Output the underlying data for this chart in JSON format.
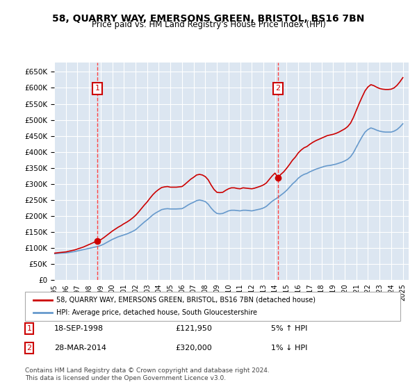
{
  "title": "58, QUARRY WAY, EMERSONS GREEN, BRISTOL, BS16 7BN",
  "subtitle": "Price paid vs. HM Land Registry's House Price Index (HPI)",
  "ylabel_ticks": [
    0,
    50000,
    100000,
    150000,
    200000,
    250000,
    300000,
    350000,
    400000,
    450000,
    500000,
    550000,
    600000,
    650000
  ],
  "ylim": [
    0,
    680000
  ],
  "xlim_start": 1995.0,
  "xlim_end": 2025.5,
  "background_color": "#dce6f1",
  "plot_bg_color": "#dce6f1",
  "grid_color": "#ffffff",
  "sale1_year": 1998.72,
  "sale1_price": 121950,
  "sale2_year": 2014.24,
  "sale2_price": 320000,
  "legend_line1": "58, QUARRY WAY, EMERSONS GREEN, BRISTOL, BS16 7BN (detached house)",
  "legend_line2": "HPI: Average price, detached house, South Gloucestershire",
  "annotation1": "1    18-SEP-1998         £121,950         5% ↑ HPI",
  "annotation2": "2    28-MAR-2014         £320,000         1% ↓ HPI",
  "footer1": "Contains HM Land Registry data © Crown copyright and database right 2024.",
  "footer2": "This data is licensed under the Open Government Licence v3.0.",
  "hpi_years": [
    1995.0,
    1995.25,
    1995.5,
    1995.75,
    1996.0,
    1996.25,
    1996.5,
    1996.75,
    1997.0,
    1997.25,
    1997.5,
    1997.75,
    1998.0,
    1998.25,
    1998.5,
    1998.75,
    1999.0,
    1999.25,
    1999.5,
    1999.75,
    2000.0,
    2000.25,
    2000.5,
    2000.75,
    2001.0,
    2001.25,
    2001.5,
    2001.75,
    2002.0,
    2002.25,
    2002.5,
    2002.75,
    2003.0,
    2003.25,
    2003.5,
    2003.75,
    2004.0,
    2004.25,
    2004.5,
    2004.75,
    2005.0,
    2005.25,
    2005.5,
    2005.75,
    2006.0,
    2006.25,
    2006.5,
    2006.75,
    2007.0,
    2007.25,
    2007.5,
    2007.75,
    2008.0,
    2008.25,
    2008.5,
    2008.75,
    2009.0,
    2009.25,
    2009.5,
    2009.75,
    2010.0,
    2010.25,
    2010.5,
    2010.75,
    2011.0,
    2011.25,
    2011.5,
    2011.75,
    2012.0,
    2012.25,
    2012.5,
    2012.75,
    2013.0,
    2013.25,
    2013.5,
    2013.75,
    2014.0,
    2014.25,
    2014.5,
    2014.75,
    2015.0,
    2015.25,
    2015.5,
    2015.75,
    2016.0,
    2016.25,
    2016.5,
    2016.75,
    2017.0,
    2017.25,
    2017.5,
    2017.75,
    2018.0,
    2018.25,
    2018.5,
    2018.75,
    2019.0,
    2019.25,
    2019.5,
    2019.75,
    2020.0,
    2020.25,
    2020.5,
    2020.75,
    2021.0,
    2021.25,
    2021.5,
    2021.75,
    2022.0,
    2022.25,
    2022.5,
    2022.75,
    2023.0,
    2023.25,
    2023.5,
    2023.75,
    2024.0,
    2024.25,
    2024.5,
    2024.75,
    2025.0
  ],
  "hpi_values": [
    82000,
    83000,
    84000,
    84500,
    85000,
    86000,
    87500,
    89000,
    91000,
    93000,
    95000,
    97000,
    99000,
    101000,
    103000,
    105000,
    108000,
    112000,
    117000,
    122000,
    127000,
    131000,
    135000,
    138000,
    141000,
    144000,
    148000,
    152000,
    157000,
    165000,
    173000,
    181000,
    188000,
    196000,
    204000,
    210000,
    215000,
    220000,
    222000,
    223000,
    222000,
    222000,
    222000,
    222500,
    223000,
    228000,
    234000,
    239000,
    243000,
    248000,
    250000,
    248000,
    245000,
    237000,
    225000,
    215000,
    208000,
    207000,
    208000,
    212000,
    216000,
    218000,
    218000,
    217000,
    216000,
    218000,
    218000,
    217000,
    216000,
    218000,
    220000,
    222000,
    225000,
    230000,
    238000,
    246000,
    252000,
    258000,
    265000,
    272000,
    280000,
    290000,
    300000,
    308000,
    318000,
    325000,
    330000,
    333000,
    338000,
    342000,
    346000,
    349000,
    352000,
    355000,
    357000,
    358000,
    360000,
    362000,
    365000,
    368000,
    372000,
    377000,
    385000,
    398000,
    415000,
    432000,
    448000,
    462000,
    470000,
    475000,
    472000,
    468000,
    465000,
    463000,
    462000,
    462000,
    462000,
    465000,
    470000,
    478000,
    488000
  ],
  "prop_years": [
    1995.0,
    1995.25,
    1995.5,
    1995.75,
    1996.0,
    1996.25,
    1996.5,
    1996.75,
    1997.0,
    1997.25,
    1997.5,
    1997.75,
    1998.0,
    1998.25,
    1998.5,
    1998.75,
    1999.0,
    1999.25,
    1999.5,
    1999.75,
    2000.0,
    2000.25,
    2000.5,
    2000.75,
    2001.0,
    2001.25,
    2001.5,
    2001.75,
    2002.0,
    2002.25,
    2002.5,
    2002.75,
    2003.0,
    2003.25,
    2003.5,
    2003.75,
    2004.0,
    2004.25,
    2004.5,
    2004.75,
    2005.0,
    2005.25,
    2005.5,
    2005.75,
    2006.0,
    2006.25,
    2006.5,
    2006.75,
    2007.0,
    2007.25,
    2007.5,
    2007.75,
    2008.0,
    2008.25,
    2008.5,
    2008.75,
    2009.0,
    2009.25,
    2009.5,
    2009.75,
    2010.0,
    2010.25,
    2010.5,
    2010.75,
    2011.0,
    2011.25,
    2011.5,
    2011.75,
    2012.0,
    2012.25,
    2012.5,
    2012.75,
    2013.0,
    2013.25,
    2013.5,
    2013.75,
    2014.0,
    2014.25,
    2014.5,
    2014.75,
    2015.0,
    2015.25,
    2015.5,
    2015.75,
    2016.0,
    2016.25,
    2016.5,
    2016.75,
    2017.0,
    2017.25,
    2017.5,
    2017.75,
    2018.0,
    2018.25,
    2018.5,
    2018.75,
    2019.0,
    2019.25,
    2019.5,
    2019.75,
    2020.0,
    2020.25,
    2020.5,
    2020.75,
    2021.0,
    2021.25,
    2021.5,
    2021.75,
    2022.0,
    2022.25,
    2022.5,
    2022.75,
    2023.0,
    2023.25,
    2023.5,
    2023.75,
    2024.0,
    2024.25,
    2024.5,
    2024.75,
    2025.0
  ],
  "prop_values": [
    84000,
    85000,
    86000,
    87000,
    88000,
    90000,
    92000,
    94000,
    97000,
    100000,
    103000,
    107000,
    111000,
    115000,
    119000,
    121950,
    126000,
    132000,
    139000,
    146000,
    153000,
    159000,
    165000,
    170000,
    176000,
    181000,
    187000,
    194000,
    202000,
    212000,
    223000,
    234000,
    244000,
    256000,
    267000,
    276000,
    283000,
    289000,
    291000,
    292000,
    290000,
    290000,
    290000,
    291000,
    292000,
    299000,
    307000,
    315000,
    321000,
    328000,
    330000,
    328000,
    323000,
    313000,
    297000,
    283000,
    274000,
    273000,
    274000,
    280000,
    285000,
    288000,
    288000,
    286000,
    285000,
    288000,
    287000,
    286000,
    285000,
    287000,
    290000,
    293000,
    297000,
    303000,
    314000,
    325000,
    334000,
    320000,
    330000,
    338000,
    349000,
    361000,
    374000,
    384000,
    397000,
    406000,
    413000,
    417000,
    424000,
    430000,
    435000,
    439000,
    443000,
    447000,
    451000,
    453000,
    455000,
    458000,
    462000,
    467000,
    472000,
    479000,
    490000,
    508000,
    530000,
    552000,
    572000,
    591000,
    603000,
    610000,
    607000,
    602000,
    598000,
    596000,
    595000,
    595000,
    596000,
    600000,
    608000,
    619000,
    632000
  ],
  "line_color_prop": "#cc0000",
  "line_color_hpi": "#6699cc",
  "marker_color": "#cc0000",
  "vline_color": "#ff4444",
  "box_color": "#cc0000",
  "xtick_years": [
    "1995",
    "1996",
    "1997",
    "1998",
    "1999",
    "2000",
    "2001",
    "2002",
    "2003",
    "2004",
    "2005",
    "2006",
    "2007",
    "2008",
    "2009",
    "2010",
    "2011",
    "2012",
    "2013",
    "2014",
    "2015",
    "2016",
    "2017",
    "2018",
    "2019",
    "2020",
    "2021",
    "2022",
    "2023",
    "2024",
    "2025"
  ]
}
